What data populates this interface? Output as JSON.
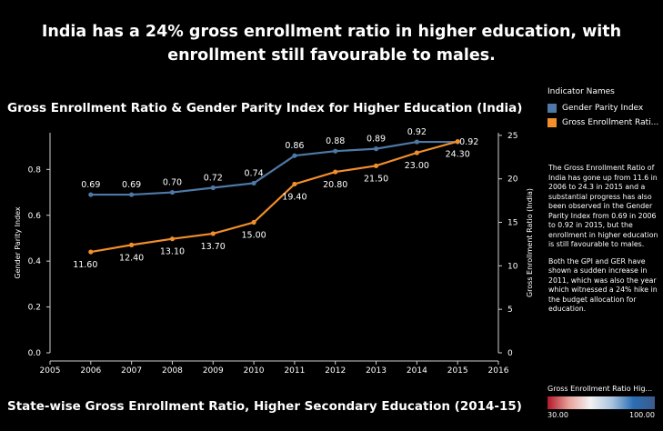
{
  "headline": "India has a 24% gross enrollment ratio in higher education, with enrollment still favourable to males.",
  "chart_title": "Gross Enrollment Ratio & Gender Parity Index for Higher Education (India)",
  "map_title": "State-wise Gross Enrollment Ratio, Higher Secondary Education (2014-15)",
  "legend": {
    "title": "Indicator Names",
    "items": [
      {
        "label": "Gender Parity Index",
        "color": "#4e79a7"
      },
      {
        "label": "Gross Enrollment Rati...",
        "color": "#f28e2b"
      }
    ]
  },
  "note_paragraphs": [
    "The Gross Enrollment Ratio of India has gone up from 11.6 in 2006 to 24.3 in 2015 and a substantial progress has also been observed in the Gender Parity Index from 0.69 in 2006 to 0.92 in 2015, but the enrollment in higher education is still favourable to males.",
    "Both the GPI and GER have shown a sudden increase in 2011, which was also the year which witnessed a  24% hike in the budget allocation  for education."
  ],
  "color_legend": {
    "title": "Gross Enrollment Ratio Hig...",
    "min_label": "30.00",
    "max_label": "100.00"
  },
  "chart_data": {
    "type": "line",
    "x": [
      2006,
      2007,
      2008,
      2009,
      2010,
      2011,
      2012,
      2013,
      2014,
      2015
    ],
    "x_ticks": [
      "2005",
      "2006",
      "2007",
      "2008",
      "2009",
      "2010",
      "2011",
      "2012",
      "2013",
      "2014",
      "2015",
      "2016"
    ],
    "xlim": [
      2005,
      2016
    ],
    "series": [
      {
        "name": "Gender Parity Index",
        "axis": "left",
        "color": "#4e79a7",
        "values": [
          0.69,
          0.69,
          0.7,
          0.72,
          0.74,
          0.86,
          0.88,
          0.89,
          0.92,
          0.92
        ],
        "labels": [
          "0.69",
          "0.69",
          "0.70",
          "0.72",
          "0.74",
          "0.86",
          "0.88",
          "0.89",
          "0.92",
          "0.92"
        ]
      },
      {
        "name": "Gross Enrollment Rati...",
        "axis": "right",
        "color": "#f28e2b",
        "values": [
          11.6,
          12.4,
          13.1,
          13.7,
          15.0,
          19.4,
          20.8,
          21.5,
          23.0,
          24.3
        ],
        "labels": [
          "11.60",
          "12.40",
          "13.10",
          "13.70",
          "15.00",
          "19.40",
          "20.80",
          "21.50",
          "23.00",
          "24.30"
        ]
      }
    ],
    "y_left": {
      "label": "Gender Parity Index",
      "ylim": [
        0,
        0.96
      ],
      "ticks": [
        "0.0",
        "0.2",
        "0.4",
        "0.6",
        "0.8"
      ],
      "tick_values": [
        0,
        0.2,
        0.4,
        0.6,
        0.8
      ]
    },
    "y_right": {
      "label": "Gross Enrollment Ratio (India)",
      "ylim": [
        0,
        25.3
      ],
      "ticks": [
        "0",
        "5",
        "10",
        "15",
        "20",
        "25"
      ],
      "tick_values": [
        0,
        5,
        10,
        15,
        20,
        25
      ]
    },
    "grid": false
  }
}
